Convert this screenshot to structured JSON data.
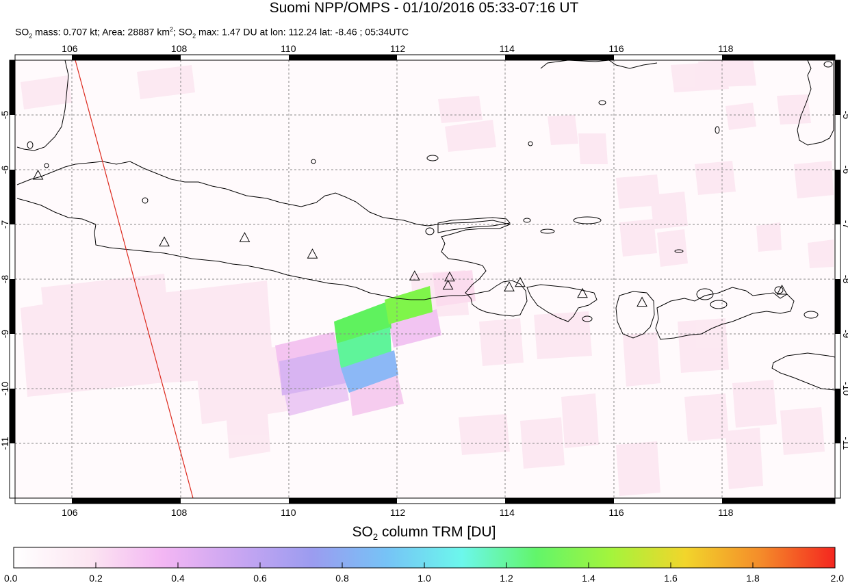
{
  "title": "Suomi NPP/OMPS - 01/10/2016 05:33-07:16 UT",
  "subtitle": {
    "mass_prefix": "SO",
    "mass_rest": " mass: 0.707 kt; Area: 28887 km",
    "area_sup": "2",
    "max_prefix": "; SO",
    "max_rest": " max: 1.47 DU at lon: 112.24 lat: -8.46 ; 05:34UTC",
    "sub2": "2"
  },
  "colorbar": {
    "title_prefix": "SO",
    "title_sub": "2",
    "title_rest": " column TRM [DU]",
    "ticks": [
      "0.0",
      "0.2",
      "0.4",
      "0.6",
      "0.8",
      "1.0",
      "1.2",
      "1.4",
      "1.6",
      "1.8",
      "2.0"
    ],
    "stops": [
      "#ffffff",
      "#fce6f2",
      "#f3b6f3",
      "#c9a6f2",
      "#9b9cf0",
      "#76c3f6",
      "#6cf7ec",
      "#62f56a",
      "#a4f43c",
      "#f2d52b",
      "#f48c2a",
      "#f4261f"
    ]
  },
  "map": {
    "lon_ticks": [
      "106",
      "108",
      "110",
      "112",
      "114",
      "116",
      "118"
    ],
    "lat_ticks": [
      "-5",
      "-6",
      "-7",
      "-8",
      "-9",
      "-10",
      "-11"
    ],
    "extent": {
      "lon_min": 105,
      "lon_max": 120,
      "lat_min": -12,
      "lat_max": -4
    }
  },
  "chart_data": {
    "type": "heatmap",
    "title": "Suomi NPP/OMPS - 01/10/2016 05:33-07:16 UT",
    "variable": "SO2 column TRM [DU]",
    "color_range": [
      0.0,
      2.0
    ],
    "max_value": {
      "value": 1.47,
      "lon": 112.24,
      "lat": -8.46
    },
    "so2_mass_kt": 0.707,
    "area_km2": 28887,
    "volcanoes": [
      {
        "lon": 105.42,
        "lat": -6.1
      },
      {
        "lon": 107.73,
        "lat": -7.32
      },
      {
        "lon": 109.2,
        "lat": -7.24
      },
      {
        "lon": 110.44,
        "lat": -7.54
      },
      {
        "lon": 112.31,
        "lat": -7.94
      },
      {
        "lon": 112.95,
        "lat": -7.96
      },
      {
        "lon": 112.92,
        "lat": -8.11
      },
      {
        "lon": 114.04,
        "lat": -8.14
      },
      {
        "lon": 114.24,
        "lat": -8.06
      },
      {
        "lon": 115.38,
        "lat": -8.26
      },
      {
        "lon": 116.47,
        "lat": -8.42
      },
      {
        "lon": 119.03,
        "lat": -8.2
      }
    ],
    "notable_pixels": [
      {
        "lon": 111.3,
        "lat": -9.0,
        "value": 1.4
      },
      {
        "lon": 112.1,
        "lat": -8.5,
        "value": 1.47
      },
      {
        "lon": 111.4,
        "lat": -9.4,
        "value": 1.2
      },
      {
        "lon": 111.5,
        "lat": -9.9,
        "value": 0.85
      },
      {
        "lon": 110.5,
        "lat": -9.6,
        "value": 0.45
      },
      {
        "lon": 112.3,
        "lat": -9.0,
        "value": 0.4
      }
    ]
  }
}
